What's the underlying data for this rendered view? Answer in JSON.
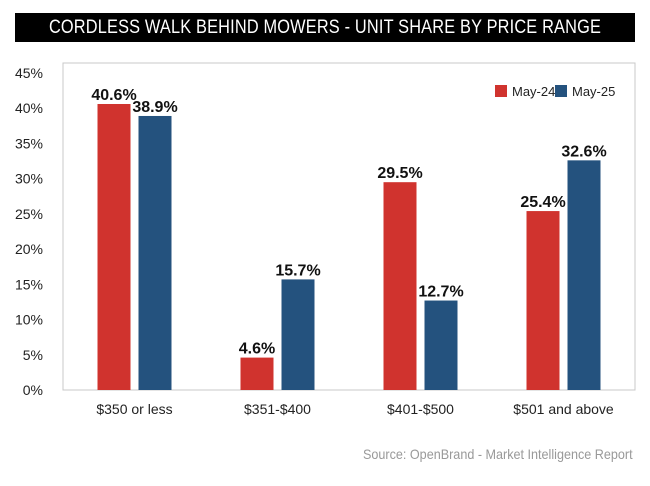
{
  "chart_data": {
    "type": "bar",
    "title": "CORDLESS WALK BEHIND MOWERS - UNIT SHARE BY PRICE RANGE",
    "categories": [
      "$350 or less",
      "$351-$400",
      "$401-$500",
      "$501 and above"
    ],
    "series": [
      {
        "name": "May-24",
        "color": "#d0332e",
        "values": [
          40.6,
          4.6,
          29.5,
          25.4
        ],
        "labels": [
          "40.6%",
          "4.6%",
          "29.5%",
          "25.4%"
        ]
      },
      {
        "name": "May-25",
        "color": "#24527e",
        "values": [
          38.9,
          15.7,
          12.7,
          32.6
        ],
        "labels": [
          "38.9%",
          "15.7%",
          "12.7%",
          "32.6%"
        ]
      }
    ],
    "y_ticks": [
      "0%",
      "5%",
      "10%",
      "15%",
      "20%",
      "25%",
      "30%",
      "35%",
      "40%",
      "45%"
    ],
    "ylim": [
      0,
      45
    ],
    "xlabel": "",
    "ylabel": "",
    "legend_position": "top-right",
    "grid": false
  },
  "source": "Source: OpenBrand - Market Intelligence Report"
}
